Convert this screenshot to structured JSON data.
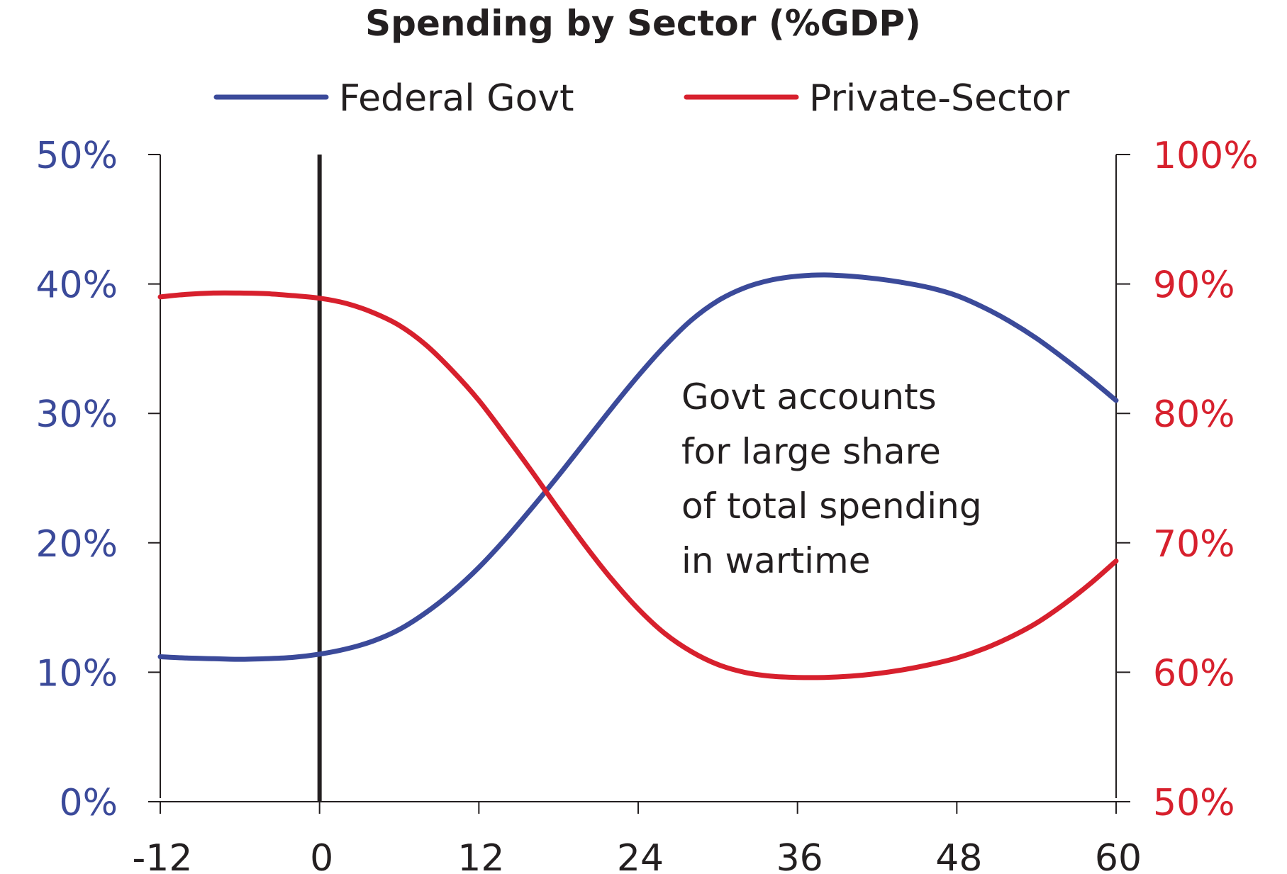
{
  "chart_data": {
    "type": "line",
    "title": "Spending by Sector (%GDP)",
    "legend_position": "top",
    "grid": false,
    "x_ticks": [
      "-12",
      "0",
      "12",
      "24",
      "36",
      "48",
      "60"
    ],
    "xlim": [
      -12,
      60
    ],
    "y_left": {
      "ticks": [
        "0%",
        "10%",
        "20%",
        "30%",
        "40%",
        "50%"
      ],
      "ylim": [
        0,
        50
      ],
      "color": "#3b4a9a"
    },
    "y_right": {
      "ticks": [
        "50%",
        "60%",
        "70%",
        "80%",
        "90%",
        "100%"
      ],
      "ylim": [
        50,
        100
      ],
      "color": "#d7202d"
    },
    "vertical_marker_x": 0,
    "annotation": [
      "Govt accounts",
      "for large share",
      "of total spending",
      "in wartime"
    ],
    "series": [
      {
        "name": "Federal Govt",
        "axis": "left",
        "color": "#3b4a9a",
        "x": [
          -12,
          -10,
          -8,
          -6,
          -4,
          -2,
          0,
          2,
          4,
          6,
          8,
          10,
          12,
          14,
          16,
          18,
          20,
          22,
          24,
          26,
          28,
          30,
          32,
          34,
          36,
          38,
          40,
          42,
          44,
          46,
          48,
          50,
          52,
          54,
          56,
          58,
          60
        ],
        "values": [
          11.2,
          11.1,
          11.05,
          11.0,
          11.05,
          11.15,
          11.4,
          11.8,
          12.4,
          13.3,
          14.6,
          16.2,
          18.1,
          20.3,
          22.7,
          25.2,
          27.8,
          30.4,
          32.9,
          35.2,
          37.2,
          38.7,
          39.7,
          40.3,
          40.6,
          40.7,
          40.6,
          40.4,
          40.1,
          39.7,
          39.1,
          38.2,
          37.1,
          35.8,
          34.3,
          32.7,
          31.0
        ]
      },
      {
        "name": "Private-Sector",
        "axis": "right",
        "color": "#d7202d",
        "x": [
          -12,
          -10,
          -8,
          -6,
          -4,
          -2,
          0,
          2,
          4,
          6,
          8,
          10,
          12,
          14,
          16,
          18,
          20,
          22,
          24,
          26,
          28,
          30,
          32,
          34,
          36,
          38,
          40,
          42,
          44,
          46,
          48,
          50,
          52,
          54,
          56,
          58,
          60
        ],
        "values": [
          89.0,
          89.2,
          89.3,
          89.3,
          89.25,
          89.1,
          88.9,
          88.5,
          87.8,
          86.8,
          85.3,
          83.3,
          81.0,
          78.3,
          75.5,
          72.6,
          69.8,
          67.2,
          64.9,
          63.0,
          61.6,
          60.6,
          60.0,
          59.7,
          59.6,
          59.6,
          59.7,
          59.9,
          60.2,
          60.6,
          61.1,
          61.8,
          62.7,
          63.8,
          65.2,
          66.8,
          68.6
        ]
      }
    ]
  }
}
